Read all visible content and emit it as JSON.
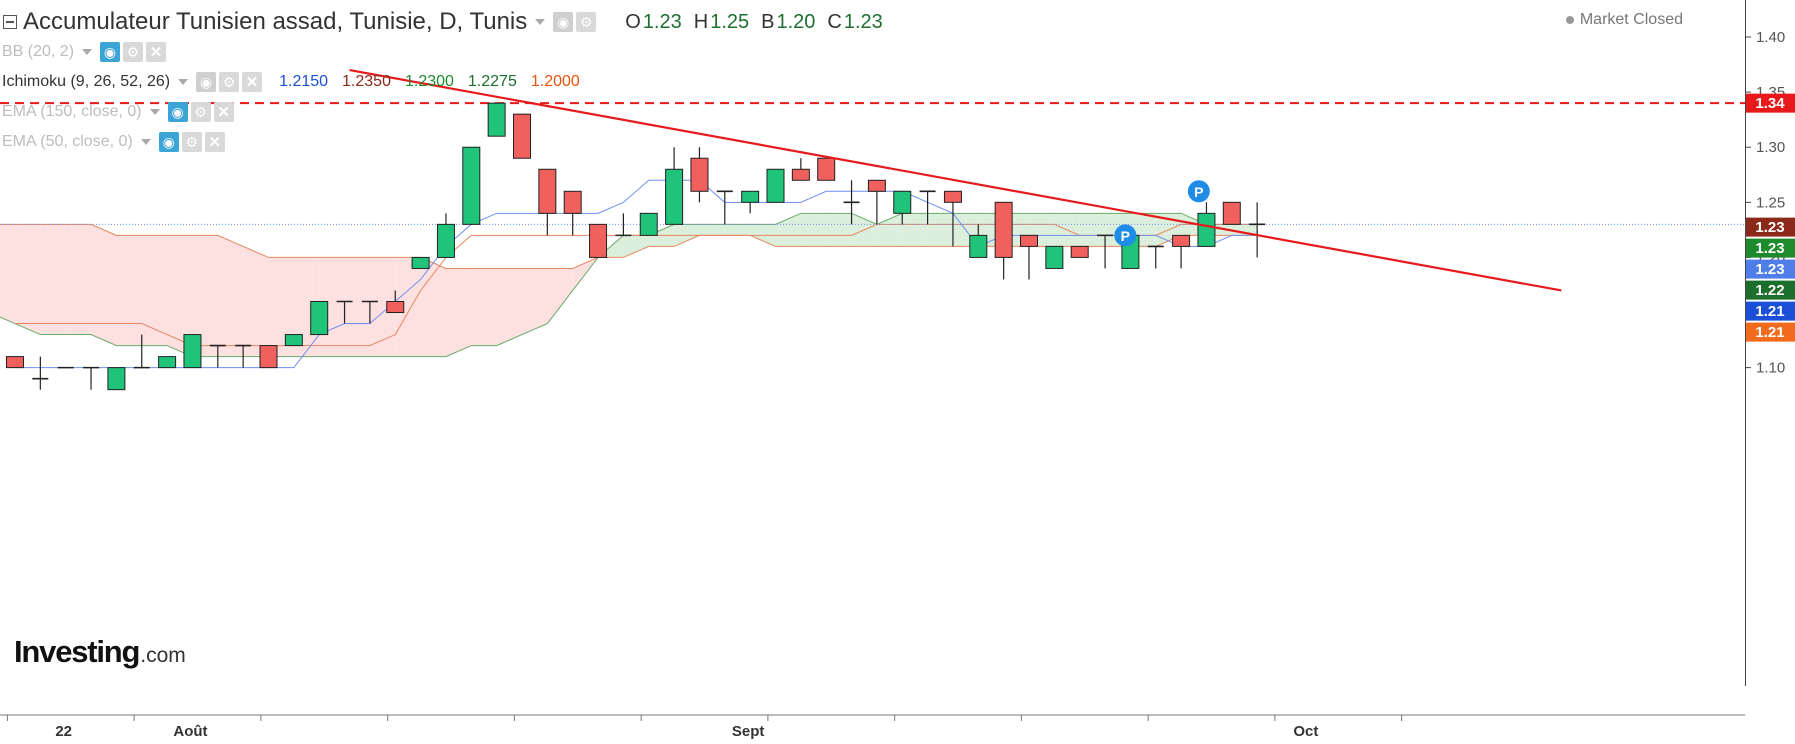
{
  "header": {
    "title": "Accumulateur Tunisien assad, Tunisie, D, Tunis",
    "ohlc": [
      {
        "label": "O",
        "value": "1.23"
      },
      {
        "label": "H",
        "value": "1.25"
      },
      {
        "label": "B",
        "value": "1.20"
      },
      {
        "label": "C",
        "value": "1.23"
      }
    ],
    "market_status": "Market Closed"
  },
  "indicators": [
    {
      "name": "BB (20, 2)",
      "active": false,
      "values": []
    },
    {
      "name": "Ichimoku (9, 26, 52, 26)",
      "active": true,
      "values": [
        {
          "text": "1.2150",
          "color": "#1b4fd8"
        },
        {
          "text": "1.2350",
          "color": "#8b2a1a"
        },
        {
          "text": "1.2300",
          "color": "#1d8a2c"
        },
        {
          "text": "1.2275",
          "color": "#1b6e2b"
        },
        {
          "text": "1.2000",
          "color": "#e8520c"
        }
      ]
    },
    {
      "name": "EMA (150, close, 0)",
      "active": false,
      "values": []
    },
    {
      "name": "EMA (50, close, 0)",
      "active": false,
      "values": []
    }
  ],
  "icons": [
    "collapse-icon",
    "eye-icon",
    "gear-icon",
    "close-icon",
    "dropdown-caret-icon"
  ],
  "logo": {
    "word": "Investing",
    "domain": ".com"
  },
  "colors": {
    "up": "#1fc47a",
    "down": "#f0605d",
    "tenkan": "#6f8ff0",
    "kijun": "#e8875d",
    "span_a": "#6aaa6a",
    "span_b": "#e8875d",
    "cloud_bear": "#fde0e0",
    "cloud_bull": "#dcefdc",
    "trendline": "#e8191b",
    "resistance": "#e8191b"
  },
  "chart_data": {
    "type": "candlestick",
    "title": "Accumulateur Tunisien assad, Tunisie, D, Tunis",
    "ylim": [
      1.05,
      1.41
    ],
    "y_ticks": [
      1.1,
      1.15,
      1.2,
      1.25,
      1.3,
      1.35,
      1.4
    ],
    "x_labels": [
      {
        "text": "22",
        "index": 2
      },
      {
        "text": "Août",
        "index": 7
      },
      {
        "text": "Sept",
        "index": 29
      },
      {
        "text": "Oct",
        "index": 51
      }
    ],
    "candles": [
      {
        "o": 1.11,
        "h": 1.11,
        "l": 1.1,
        "c": 1.1
      },
      {
        "o": 1.09,
        "h": 1.11,
        "l": 1.08,
        "c": 1.09
      },
      {
        "o": 1.1,
        "h": 1.1,
        "l": 1.1,
        "c": 1.1
      },
      {
        "o": 1.1,
        "h": 1.1,
        "l": 1.08,
        "c": 1.1
      },
      {
        "o": 1.08,
        "h": 1.1,
        "l": 1.08,
        "c": 1.1
      },
      {
        "o": 1.1,
        "h": 1.13,
        "l": 1.1,
        "c": 1.1
      },
      {
        "o": 1.1,
        "h": 1.11,
        "l": 1.1,
        "c": 1.11
      },
      {
        "o": 1.1,
        "h": 1.13,
        "l": 1.1,
        "c": 1.13
      },
      {
        "o": 1.12,
        "h": 1.12,
        "l": 1.1,
        "c": 1.12
      },
      {
        "o": 1.12,
        "h": 1.12,
        "l": 1.1,
        "c": 1.12
      },
      {
        "o": 1.12,
        "h": 1.12,
        "l": 1.1,
        "c": 1.1
      },
      {
        "o": 1.12,
        "h": 1.13,
        "l": 1.12,
        "c": 1.13
      },
      {
        "o": 1.13,
        "h": 1.16,
        "l": 1.13,
        "c": 1.16
      },
      {
        "o": 1.16,
        "h": 1.16,
        "l": 1.14,
        "c": 1.16
      },
      {
        "o": 1.16,
        "h": 1.16,
        "l": 1.14,
        "c": 1.16
      },
      {
        "o": 1.16,
        "h": 1.17,
        "l": 1.15,
        "c": 1.15
      },
      {
        "o": 1.19,
        "h": 1.2,
        "l": 1.19,
        "c": 1.2
      },
      {
        "o": 1.2,
        "h": 1.24,
        "l": 1.2,
        "c": 1.23
      },
      {
        "o": 1.23,
        "h": 1.3,
        "l": 1.23,
        "c": 1.3
      },
      {
        "o": 1.31,
        "h": 1.34,
        "l": 1.31,
        "c": 1.34
      },
      {
        "o": 1.33,
        "h": 1.33,
        "l": 1.29,
        "c": 1.29
      },
      {
        "o": 1.28,
        "h": 1.28,
        "l": 1.22,
        "c": 1.24
      },
      {
        "o": 1.26,
        "h": 1.26,
        "l": 1.22,
        "c": 1.24
      },
      {
        "o": 1.23,
        "h": 1.23,
        "l": 1.2,
        "c": 1.2
      },
      {
        "o": 1.22,
        "h": 1.24,
        "l": 1.22,
        "c": 1.22
      },
      {
        "o": 1.22,
        "h": 1.24,
        "l": 1.22,
        "c": 1.24
      },
      {
        "o": 1.23,
        "h": 1.3,
        "l": 1.23,
        "c": 1.28
      },
      {
        "o": 1.29,
        "h": 1.3,
        "l": 1.25,
        "c": 1.26
      },
      {
        "o": 1.26,
        "h": 1.26,
        "l": 1.23,
        "c": 1.26
      },
      {
        "o": 1.25,
        "h": 1.26,
        "l": 1.24,
        "c": 1.26
      },
      {
        "o": 1.25,
        "h": 1.28,
        "l": 1.25,
        "c": 1.28
      },
      {
        "o": 1.28,
        "h": 1.29,
        "l": 1.27,
        "c": 1.27
      },
      {
        "o": 1.29,
        "h": 1.29,
        "l": 1.27,
        "c": 1.27
      },
      {
        "o": 1.25,
        "h": 1.27,
        "l": 1.23,
        "c": 1.25
      },
      {
        "o": 1.27,
        "h": 1.27,
        "l": 1.23,
        "c": 1.26
      },
      {
        "o": 1.24,
        "h": 1.26,
        "l": 1.23,
        "c": 1.26
      },
      {
        "o": 1.26,
        "h": 1.26,
        "l": 1.23,
        "c": 1.26
      },
      {
        "o": 1.26,
        "h": 1.26,
        "l": 1.21,
        "c": 1.25
      },
      {
        "o": 1.2,
        "h": 1.23,
        "l": 1.2,
        "c": 1.22
      },
      {
        "o": 1.25,
        "h": 1.25,
        "l": 1.18,
        "c": 1.2
      },
      {
        "o": 1.22,
        "h": 1.22,
        "l": 1.18,
        "c": 1.21
      },
      {
        "o": 1.19,
        "h": 1.21,
        "l": 1.19,
        "c": 1.21
      },
      {
        "o": 1.21,
        "h": 1.21,
        "l": 1.2,
        "c": 1.2
      },
      {
        "o": 1.22,
        "h": 1.22,
        "l": 1.19,
        "c": 1.22
      },
      {
        "o": 1.19,
        "h": 1.22,
        "l": 1.19,
        "c": 1.22
      },
      {
        "o": 1.21,
        "h": 1.21,
        "l": 1.19,
        "c": 1.21
      },
      {
        "o": 1.22,
        "h": 1.22,
        "l": 1.19,
        "c": 1.21
      },
      {
        "o": 1.21,
        "h": 1.25,
        "l": 1.21,
        "c": 1.24
      },
      {
        "o": 1.25,
        "h": 1.25,
        "l": 1.23,
        "c": 1.23
      },
      {
        "o": 1.23,
        "h": 1.25,
        "l": 1.2,
        "c": 1.23
      }
    ],
    "ichimoku": {
      "tenkan": [
        1.1,
        1.1,
        1.1,
        1.1,
        1.1,
        1.1,
        1.1,
        1.1,
        1.1,
        1.1,
        1.1,
        1.1,
        1.13,
        1.14,
        1.14,
        1.16,
        1.18,
        1.21,
        1.23,
        1.24,
        1.24,
        1.24,
        1.24,
        1.24,
        1.25,
        1.27,
        1.27,
        1.27,
        1.25,
        1.25,
        1.25,
        1.25,
        1.26,
        1.26,
        1.26,
        1.26,
        1.25,
        1.24,
        1.21,
        1.22,
        1.22,
        1.22,
        1.22,
        1.22,
        1.22,
        1.22,
        1.21,
        1.21,
        1.22,
        1.22
      ],
      "kijun": [
        1.14,
        1.14,
        1.14,
        1.14,
        1.14,
        1.14,
        1.13,
        1.12,
        1.12,
        1.12,
        1.12,
        1.12,
        1.12,
        1.12,
        1.12,
        1.13,
        1.17,
        1.2,
        1.22,
        1.22,
        1.22,
        1.22,
        1.22,
        1.22,
        1.22,
        1.22,
        1.22,
        1.22,
        1.22,
        1.22,
        1.22,
        1.22,
        1.22,
        1.22,
        1.23,
        1.23,
        1.23,
        1.23,
        1.23,
        1.23,
        1.23,
        1.23,
        1.22,
        1.22,
        1.22,
        1.22,
        1.23,
        1.23,
        1.23,
        1.23
      ],
      "span_a": [
        1.28,
        1.26,
        1.26,
        1.25,
        1.25,
        1.24,
        1.24,
        1.23,
        1.23,
        1.22,
        1.22,
        1.21,
        1.21,
        1.2,
        1.21,
        1.19,
        1.17,
        1.16,
        1.16,
        1.15,
        1.15,
        1.14,
        1.13,
        1.13,
        1.13,
        1.12,
        1.12,
        1.12,
        1.11,
        1.11,
        1.11,
        1.11,
        1.11,
        1.11,
        1.11,
        1.11,
        1.11,
        1.11,
        1.11,
        1.12,
        1.12,
        1.13,
        1.14,
        1.17,
        1.2,
        1.22,
        1.22,
        1.23,
        1.23,
        1.23,
        1.23,
        1.23,
        1.24,
        1.24,
        1.24,
        1.23,
        1.24,
        1.24,
        1.24,
        1.24,
        1.24,
        1.24,
        1.24,
        1.24,
        1.24,
        1.24,
        1.24,
        1.24,
        1.23,
        1.23,
        1.23
      ],
      "span_b": [
        1.32,
        1.31,
        1.31,
        1.31,
        1.31,
        1.31,
        1.31,
        1.31,
        1.3,
        1.29,
        1.28,
        1.28,
        1.26,
        1.24,
        1.23,
        1.23,
        1.23,
        1.23,
        1.23,
        1.23,
        1.23,
        1.23,
        1.23,
        1.23,
        1.23,
        1.22,
        1.22,
        1.22,
        1.22,
        1.22,
        1.21,
        1.2,
        1.2,
        1.2,
        1.2,
        1.2,
        1.2,
        1.2,
        1.19,
        1.19,
        1.19,
        1.19,
        1.19,
        1.19,
        1.2,
        1.2,
        1.21,
        1.21,
        1.22,
        1.22,
        1.22,
        1.21,
        1.21,
        1.21,
        1.21,
        1.21,
        1.21,
        1.21,
        1.21,
        1.21,
        1.21,
        1.21,
        1.21,
        1.21,
        1.21,
        1.21,
        1.21,
        1.22,
        1.22,
        1.22,
        1.22
      ]
    },
    "cloud_start_index": -21,
    "trendline": {
      "from": {
        "index": 13.2,
        "price": 1.37
      },
      "to": {
        "index": 61,
        "price": 1.17
      }
    },
    "resistance": {
      "price": 1.34,
      "label": "1.34"
    },
    "last_price_line": {
      "price": 1.23
    },
    "markers": [
      {
        "text": "P",
        "index": 43.8,
        "price": 1.22
      },
      {
        "text": "P",
        "index": 46.7,
        "price": 1.26
      }
    ],
    "price_labels": [
      {
        "text": "1.34",
        "price": 1.34,
        "color": "#e8191b"
      },
      {
        "text": "1.23",
        "price": 1.2275,
        "color": "#8b2a1a"
      },
      {
        "text": "1.23",
        "price": 1.2245,
        "color": "#1d8a2c"
      },
      {
        "text": "1.23",
        "price": 1.2215,
        "color": "#4f7ee8"
      },
      {
        "text": "1.22",
        "price": 1.2185,
        "color": "#1b6e2b"
      },
      {
        "text": "1.21",
        "price": 1.2155,
        "color": "#1b4fd8"
      },
      {
        "text": "1.21",
        "price": 1.2125,
        "color": "#f26a1b"
      }
    ]
  }
}
